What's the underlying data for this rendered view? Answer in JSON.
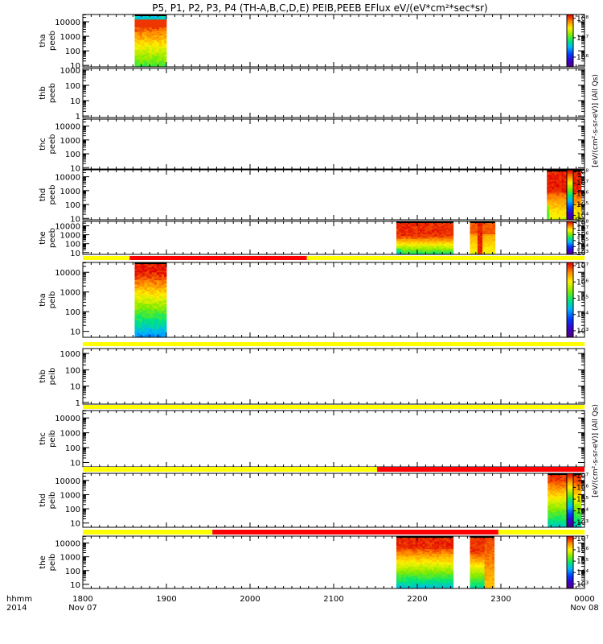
{
  "chart_data": {
    "type": "heatmap",
    "title": "P5, P1, P2, P3, P4 (TH-A,B,C,D,E) PEIB,PEEB EFlux eV/(eV*cm²*sec*sr)",
    "x_ticks": [
      {
        "value": 1800,
        "line1": "1800",
        "line2": "Nov 07"
      },
      {
        "value": 1900,
        "line1": "1900",
        "line2": ""
      },
      {
        "value": 2000,
        "line1": "2000",
        "line2": ""
      },
      {
        "value": 2100,
        "line1": "2100",
        "line2": ""
      },
      {
        "value": 2200,
        "line1": "2200",
        "line2": ""
      },
      {
        "value": 2300,
        "line1": "2300",
        "line2": ""
      },
      {
        "value": 2400,
        "line1": "0000",
        "line2": "Nov 08"
      }
    ],
    "x_range": [
      1800,
      2400
    ],
    "x_label_line1": "hhmm",
    "x_label_line2": "2014",
    "colors": {
      "quality_good": "#ffff00",
      "quality_bad": "#ff0000"
    },
    "colorbar_labels": {
      "peeb": "[eV/(cm²-s-sr-eV)] (All Qs)",
      "peib": "[eV/(cm²-s-sr-eV)] (All Qs)"
    },
    "panels": [
      {
        "probe": "tha",
        "product": "peeb",
        "y_ticks": [
          "10",
          "100",
          "1000",
          "10000"
        ],
        "y_log_range": [
          0.9,
          4.5
        ],
        "quality_bar": null,
        "colorbar": {
          "labels": [
            "10⁶",
            "10⁷",
            "10⁸"
          ],
          "log_range": [
            5.5,
            8.2
          ]
        },
        "blocks": [
          {
            "x0": 1862,
            "x1": 1900,
            "profile": "hot_top"
          }
        ]
      },
      {
        "probe": "thb",
        "product": "peeb",
        "y_ticks": [
          "1",
          "10",
          "100",
          "1000"
        ],
        "y_log_range": [
          -0.1,
          3.1
        ],
        "quality_bar": null,
        "colorbar": null,
        "blocks": []
      },
      {
        "probe": "thc",
        "product": "peeb",
        "y_ticks": [
          "10",
          "100",
          "1000",
          "10000"
        ],
        "y_log_range": [
          0.9,
          4.5
        ],
        "quality_bar": null,
        "colorbar": null,
        "blocks": []
      },
      {
        "probe": "thd",
        "product": "peeb",
        "y_ticks": [
          "10",
          "100",
          "1000",
          "10000"
        ],
        "y_log_range": [
          0.9,
          4.5
        ],
        "quality_bar": null,
        "colorbar": {
          "labels": [
            "10⁴",
            "10⁵",
            "10⁶",
            "10⁷",
            "10⁸"
          ],
          "log_range": [
            3.6,
            8.2
          ]
        },
        "blocks": [
          {
            "x0": 2355,
            "x1": 2396,
            "profile": "hot_all"
          }
        ]
      },
      {
        "probe": "the",
        "product": "peeb",
        "y_ticks": [
          "10",
          "100",
          "1000",
          "10000"
        ],
        "y_log_range": [
          0.8,
          4.5
        ],
        "quality_bar": null,
        "colorbar": {
          "labels": [
            "10³",
            "10⁴",
            "10⁵",
            "10⁶",
            "10⁷",
            "10⁸"
          ],
          "log_range": [
            2.7,
            8.2
          ]
        },
        "blocks": [
          {
            "x0": 2175,
            "x1": 2243,
            "profile": "red_green"
          },
          {
            "x0": 2263,
            "x1": 2293,
            "profile": "red_narrow"
          }
        ]
      },
      {
        "probe": "tha",
        "product": "peib",
        "y_ticks": [
          "10",
          "100",
          "1000",
          "10000"
        ],
        "y_log_range": [
          0.7,
          4.5
        ],
        "quality_bar": [
          {
            "x0": 1800,
            "x1": 1856,
            "state": "good"
          },
          {
            "x0": 1856,
            "x1": 2068,
            "state": "bad"
          },
          {
            "x0": 2068,
            "x1": 2400,
            "state": "good"
          }
        ],
        "colorbar": {
          "labels": [
            "10³",
            "10⁴",
            "10⁵",
            "10⁶",
            "10⁷"
          ],
          "log_range": [
            2.6,
            7.2
          ]
        },
        "blocks": [
          {
            "x0": 1862,
            "x1": 1900,
            "profile": "ion_blue"
          }
        ]
      },
      {
        "probe": "thb",
        "product": "peib",
        "y_ticks": [
          "1",
          "10",
          "100",
          "1000"
        ],
        "y_log_range": [
          -0.1,
          3.3
        ],
        "quality_bar": [
          {
            "x0": 1800,
            "x1": 2400,
            "state": "good"
          }
        ],
        "colorbar": null,
        "blocks": []
      },
      {
        "probe": "thc",
        "product": "peib",
        "y_ticks": [
          "10",
          "100",
          "1000",
          "10000"
        ],
        "y_log_range": [
          0.7,
          4.5
        ],
        "quality_bar": [
          {
            "x0": 1800,
            "x1": 2400,
            "state": "good"
          }
        ],
        "colorbar": null,
        "blocks": []
      },
      {
        "probe": "thd",
        "product": "peib",
        "y_ticks": [
          "10",
          "100",
          "1000",
          "10000"
        ],
        "y_log_range": [
          0.7,
          4.5
        ],
        "quality_bar": [
          {
            "x0": 1800,
            "x1": 2152,
            "state": "good"
          },
          {
            "x0": 2152,
            "x1": 2400,
            "state": "bad"
          }
        ],
        "colorbar": {
          "labels": [
            "10³",
            "10⁴",
            "10⁵",
            "10⁶",
            "10⁷"
          ],
          "log_range": [
            2.6,
            7.2
          ]
        },
        "blocks": [
          {
            "x0": 2356,
            "x1": 2396,
            "profile": "ion_green"
          }
        ]
      },
      {
        "probe": "the",
        "product": "peib",
        "y_ticks": [
          "10",
          "100",
          "1000",
          "10000"
        ],
        "y_log_range": [
          0.7,
          4.5
        ],
        "quality_bar": [
          {
            "x0": 1800,
            "x1": 1955,
            "state": "good"
          },
          {
            "x0": 1955,
            "x1": 2297,
            "state": "bad"
          },
          {
            "x0": 2297,
            "x1": 2400,
            "state": "good"
          }
        ],
        "colorbar": {
          "labels": [
            "10³",
            "10⁴",
            "10⁵",
            "10⁶",
            "10⁷"
          ],
          "log_range": [
            2.6,
            7.2
          ]
        },
        "blocks": [
          {
            "x0": 2175,
            "x1": 2243,
            "profile": "ion_the"
          },
          {
            "x0": 2263,
            "x1": 2292,
            "profile": "ion_the_narrow"
          }
        ]
      }
    ]
  }
}
